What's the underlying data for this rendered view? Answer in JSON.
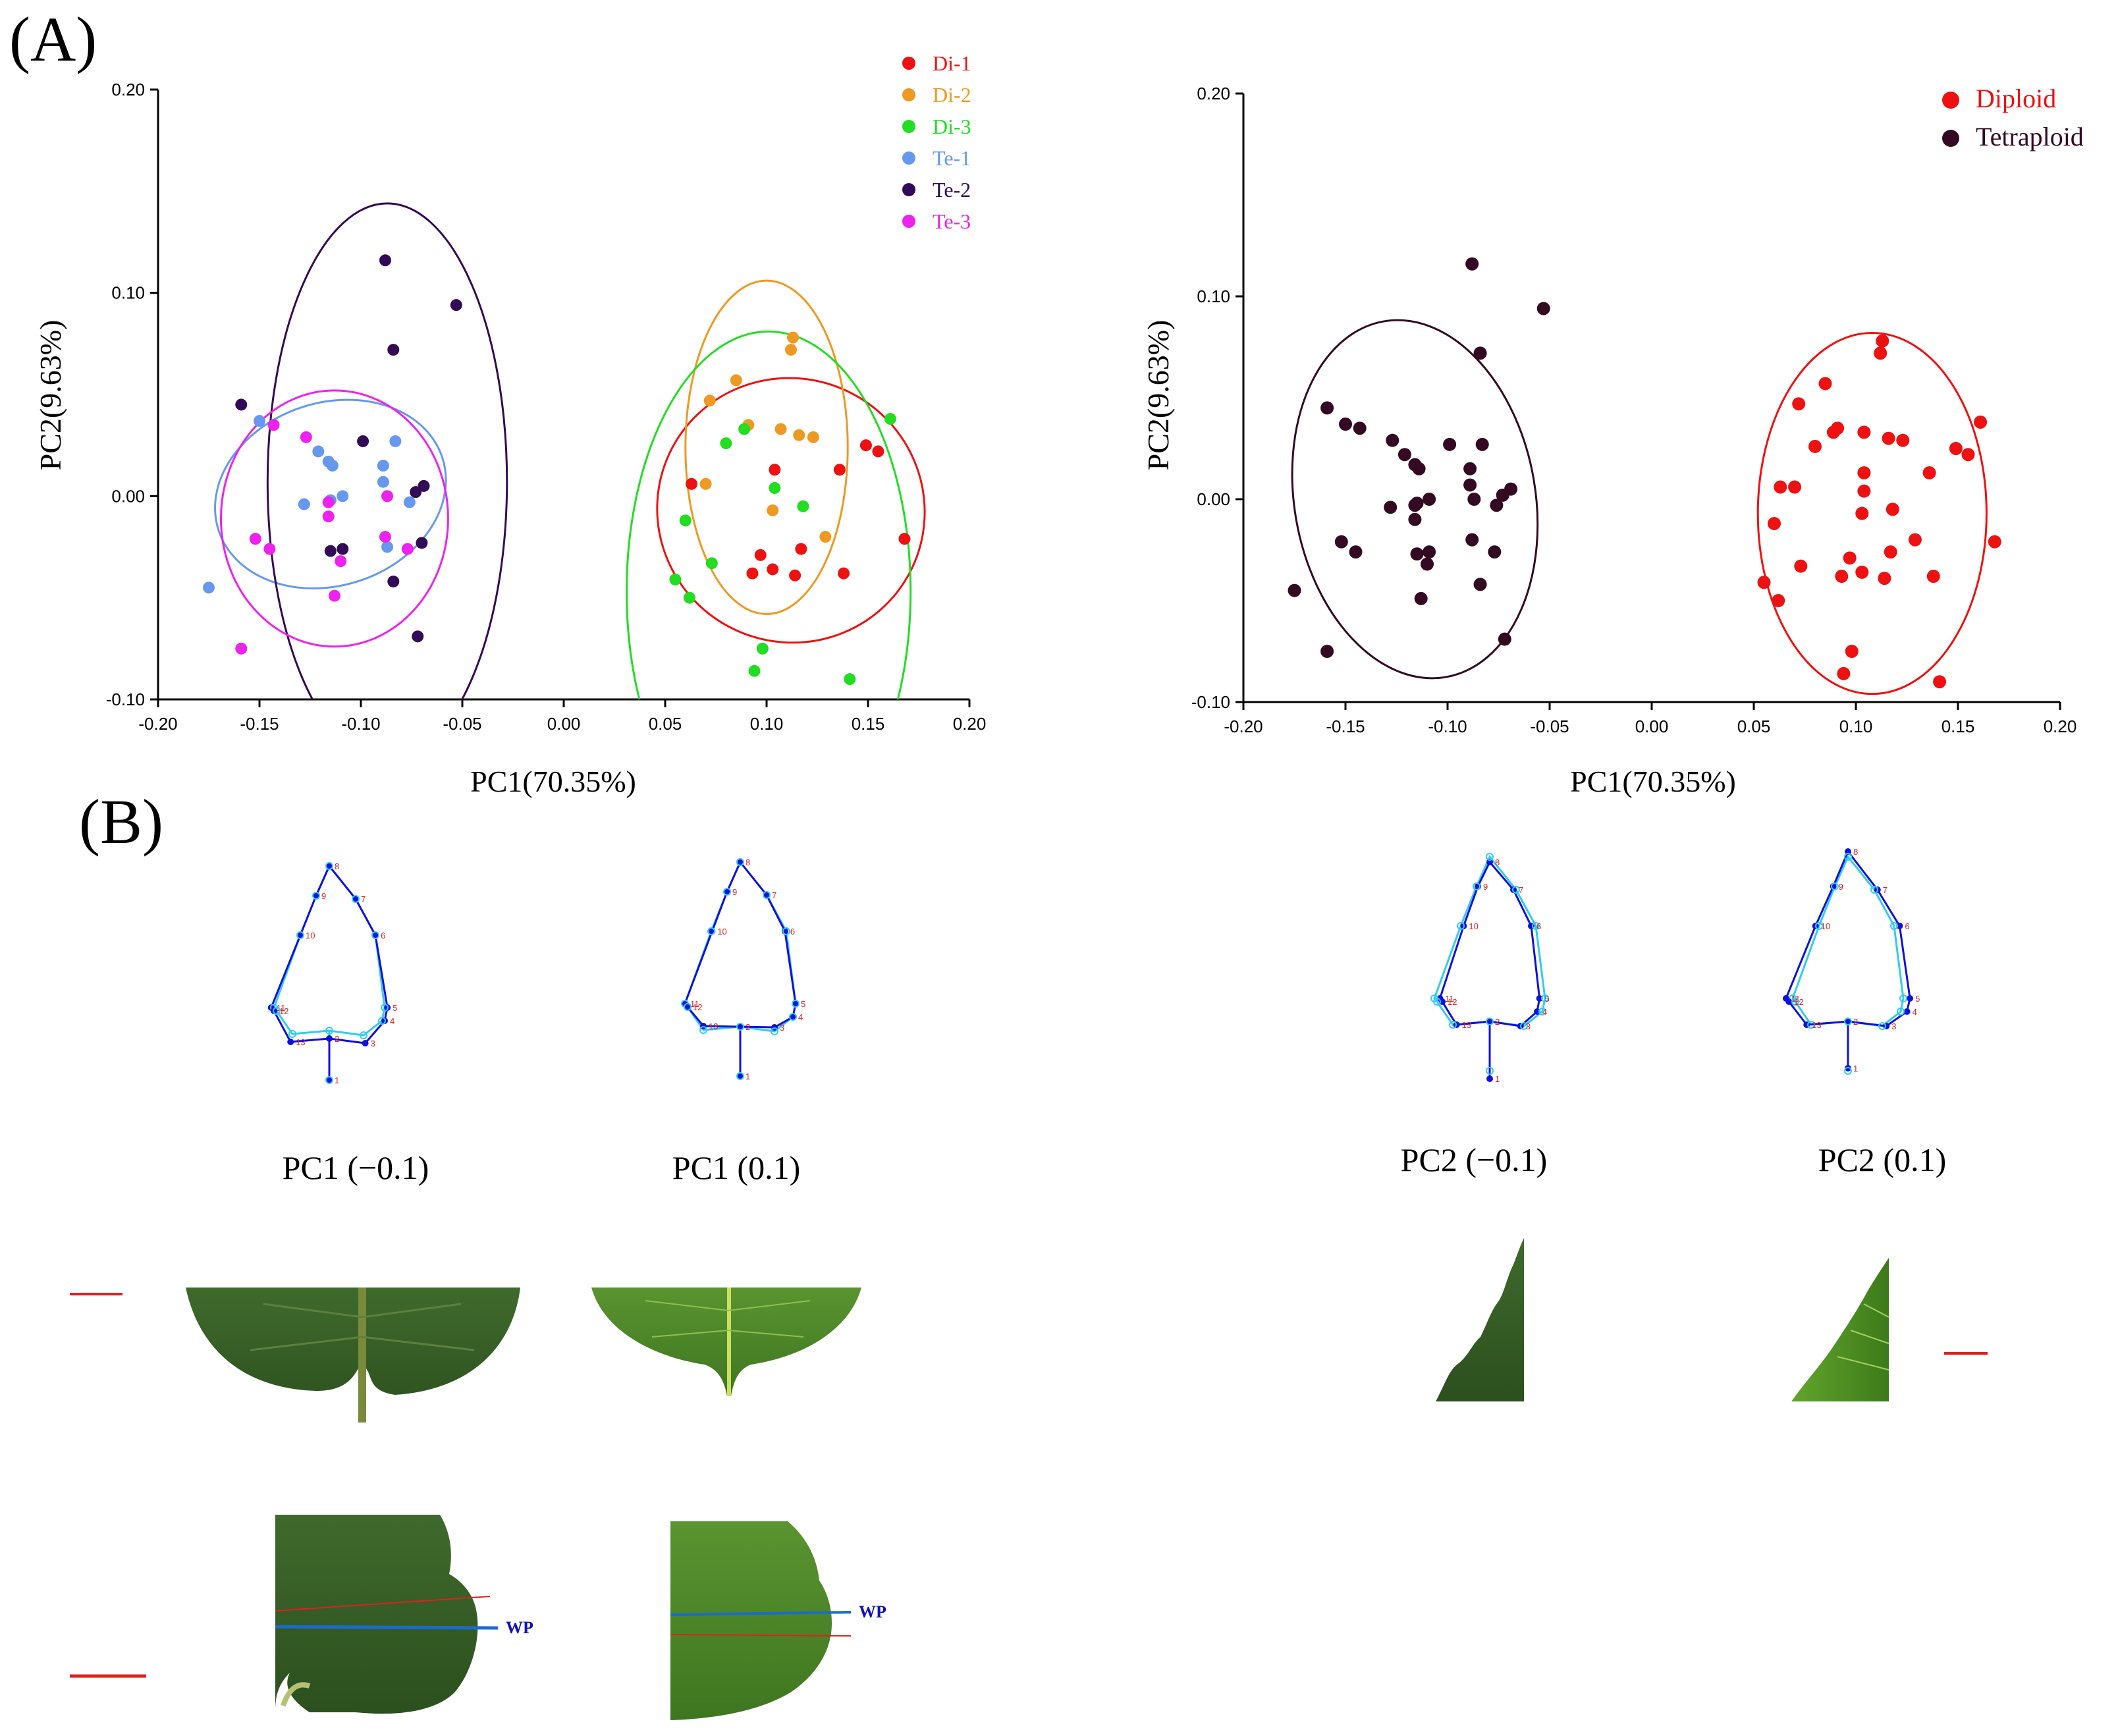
{
  "panel_labels": {
    "a": "(A)",
    "b": "(B)"
  },
  "chart_data": [
    {
      "type": "scatter",
      "title": "",
      "xlabel": "PC1(70.35%)",
      "ylabel": "PC2(9.63%)",
      "xlim": [
        -0.2,
        0.2
      ],
      "ylim": [
        -0.1,
        0.2
      ],
      "xticks": [
        "-0.20",
        "-0.15",
        "-0.10",
        "-0.05",
        "0.00",
        "0.05",
        "0.10",
        "0.15",
        "0.20"
      ],
      "yticks": [
        "-0.10",
        "0.00",
        "0.10",
        "0.20"
      ],
      "legend_position": "top-right",
      "series": [
        {
          "name": "Di-1",
          "color": "#ee1111",
          "points": [
            [
              0.063,
              0.006
            ],
            [
              0.104,
              0.013
            ],
            [
              0.136,
              0.013
            ],
            [
              0.149,
              0.025
            ],
            [
              0.155,
              0.022
            ],
            [
              0.168,
              -0.021
            ],
            [
              0.093,
              -0.038
            ],
            [
              0.103,
              -0.036
            ],
            [
              0.114,
              -0.039
            ],
            [
              0.138,
              -0.038
            ],
            [
              0.097,
              -0.029
            ],
            [
              0.117,
              -0.026
            ]
          ],
          "ellipse": {
            "cx": 0.112,
            "cy": -0.007,
            "rx": 0.065,
            "ry": 0.066,
            "angle": -65
          }
        },
        {
          "name": "Di-2",
          "color": "#ee9922",
          "points": [
            [
              0.113,
              0.078
            ],
            [
              0.112,
              0.072
            ],
            [
              0.085,
              0.057
            ],
            [
              0.072,
              0.047
            ],
            [
              0.091,
              0.035
            ],
            [
              0.107,
              0.033
            ],
            [
              0.116,
              0.03
            ],
            [
              0.123,
              0.029
            ],
            [
              0.07,
              0.006
            ],
            [
              0.103,
              -0.007
            ],
            [
              0.129,
              -0.02
            ]
          ],
          "ellipse": {
            "cx": 0.1,
            "cy": 0.024,
            "rx": 0.04,
            "ry": 0.082,
            "angle": 0
          }
        },
        {
          "name": "Di-3",
          "color": "#22dd22",
          "points": [
            [
              0.161,
              0.038
            ],
            [
              0.089,
              0.033
            ],
            [
              0.08,
              0.026
            ],
            [
              0.104,
              0.004
            ],
            [
              0.118,
              -0.005
            ],
            [
              0.06,
              -0.012
            ],
            [
              0.073,
              -0.033
            ],
            [
              0.055,
              -0.041
            ],
            [
              0.062,
              -0.05
            ],
            [
              0.098,
              -0.075
            ],
            [
              0.094,
              -0.086
            ],
            [
              0.141,
              -0.09
            ]
          ],
          "ellipse": {
            "cx": 0.101,
            "cy": -0.047,
            "rx": 0.07,
            "ry": 0.128,
            "angle": 0
          }
        },
        {
          "name": "Te-1",
          "color": "#6699ee",
          "points": [
            [
              -0.15,
              0.037
            ],
            [
              -0.121,
              0.022
            ],
            [
              -0.116,
              0.017
            ],
            [
              -0.114,
              0.015
            ],
            [
              -0.089,
              0.015
            ],
            [
              -0.089,
              0.007
            ],
            [
              -0.083,
              0.027
            ],
            [
              -0.128,
              -0.004
            ],
            [
              -0.115,
              -0.002
            ],
            [
              -0.109,
              0.0
            ],
            [
              -0.076,
              -0.003
            ],
            [
              -0.087,
              -0.025
            ],
            [
              -0.175,
              -0.045
            ]
          ],
          "ellipse": {
            "cx": -0.115,
            "cy": 0.001,
            "rx": 0.058,
            "ry": 0.045,
            "angle": -18
          }
        },
        {
          "name": "Te-2",
          "color": "#330a55",
          "points": [
            [
              -0.088,
              0.116
            ],
            [
              -0.053,
              0.094
            ],
            [
              -0.084,
              0.072
            ],
            [
              -0.159,
              0.045
            ],
            [
              -0.099,
              0.027
            ],
            [
              -0.069,
              0.005
            ],
            [
              -0.073,
              0.002
            ],
            [
              -0.109,
              -0.026
            ],
            [
              -0.115,
              -0.027
            ],
            [
              -0.07,
              -0.023
            ],
            [
              -0.084,
              -0.042
            ],
            [
              -0.072,
              -0.069
            ]
          ],
          "ellipse": {
            "cx": -0.087,
            "cy": 0.007,
            "rx": 0.059,
            "ry": 0.137,
            "angle": 0
          }
        },
        {
          "name": "Te-3",
          "color": "#ee22ee",
          "points": [
            [
              -0.143,
              0.035
            ],
            [
              -0.127,
              0.029
            ],
            [
              -0.116,
              -0.003
            ],
            [
              -0.116,
              -0.01
            ],
            [
              -0.087,
              0.0
            ],
            [
              -0.088,
              -0.02
            ],
            [
              -0.152,
              -0.021
            ],
            [
              -0.145,
              -0.026
            ],
            [
              -0.11,
              -0.032
            ],
            [
              -0.077,
              -0.026
            ],
            [
              -0.113,
              -0.049
            ],
            [
              -0.159,
              -0.075
            ]
          ],
          "ellipse": {
            "cx": -0.113,
            "cy": -0.011,
            "rx": 0.056,
            "ry": 0.063,
            "angle": 0
          }
        }
      ]
    },
    {
      "type": "scatter",
      "title": "",
      "xlabel": "PC1(70.35%)",
      "ylabel": "PC2(9.63%)",
      "xlim": [
        -0.2,
        0.2
      ],
      "ylim": [
        -0.1,
        0.2
      ],
      "xticks": [
        "-0.20",
        "-0.15",
        "-0.10",
        "-0.05",
        "0.00",
        "0.05",
        "0.10",
        "0.15",
        "0.20"
      ],
      "yticks": [
        "-0.10",
        "0.00",
        "0.10",
        "0.20"
      ],
      "legend_position": "top-right",
      "series": [
        {
          "name": "Diploid",
          "color": "#ee1111",
          "points": [
            [
              0.113,
              0.078
            ],
            [
              0.112,
              0.072
            ],
            [
              0.085,
              0.057
            ],
            [
              0.072,
              0.047
            ],
            [
              0.161,
              0.038
            ],
            [
              0.089,
              0.033
            ],
            [
              0.091,
              0.035
            ],
            [
              0.08,
              0.026
            ],
            [
              0.104,
              0.033
            ],
            [
              0.116,
              0.03
            ],
            [
              0.123,
              0.029
            ],
            [
              0.149,
              0.025
            ],
            [
              0.155,
              0.022
            ],
            [
              0.136,
              0.013
            ],
            [
              0.104,
              0.013
            ],
            [
              0.063,
              0.006
            ],
            [
              0.07,
              0.006
            ],
            [
              0.104,
              0.004
            ],
            [
              0.103,
              -0.007
            ],
            [
              0.118,
              -0.005
            ],
            [
              0.06,
              -0.012
            ],
            [
              0.168,
              -0.021
            ],
            [
              0.129,
              -0.02
            ],
            [
              0.117,
              -0.026
            ],
            [
              0.073,
              -0.033
            ],
            [
              0.097,
              -0.029
            ],
            [
              0.093,
              -0.038
            ],
            [
              0.103,
              -0.036
            ],
            [
              0.114,
              -0.039
            ],
            [
              0.138,
              -0.038
            ],
            [
              0.055,
              -0.041
            ],
            [
              0.062,
              -0.05
            ],
            [
              0.098,
              -0.075
            ],
            [
              0.094,
              -0.086
            ],
            [
              0.141,
              -0.09
            ]
          ],
          "ellipse": {
            "cx": 0.108,
            "cy": -0.007,
            "rx": 0.056,
            "ry": 0.089,
            "angle": 0
          }
        },
        {
          "name": "Tetraploid",
          "color": "#330a22",
          "points": [
            [
              -0.088,
              0.116
            ],
            [
              -0.053,
              0.094
            ],
            [
              -0.084,
              0.072
            ],
            [
              -0.159,
              0.045
            ],
            [
              -0.15,
              0.037
            ],
            [
              -0.143,
              0.035
            ],
            [
              -0.127,
              0.029
            ],
            [
              -0.099,
              0.027
            ],
            [
              -0.083,
              0.027
            ],
            [
              -0.121,
              0.022
            ],
            [
              -0.116,
              0.017
            ],
            [
              -0.089,
              0.015
            ],
            [
              -0.114,
              0.015
            ],
            [
              -0.089,
              0.007
            ],
            [
              -0.069,
              0.005
            ],
            [
              -0.073,
              0.002
            ],
            [
              -0.087,
              0.0
            ],
            [
              -0.109,
              0.0
            ],
            [
              -0.115,
              -0.002
            ],
            [
              -0.128,
              -0.004
            ],
            [
              -0.116,
              -0.003
            ],
            [
              -0.076,
              -0.003
            ],
            [
              -0.116,
              -0.01
            ],
            [
              -0.088,
              -0.02
            ],
            [
              -0.152,
              -0.021
            ],
            [
              -0.145,
              -0.026
            ],
            [
              -0.077,
              -0.026
            ],
            [
              -0.109,
              -0.026
            ],
            [
              -0.115,
              -0.027
            ],
            [
              -0.11,
              -0.032
            ],
            [
              -0.084,
              -0.042
            ],
            [
              -0.113,
              -0.049
            ],
            [
              -0.175,
              -0.045
            ],
            [
              -0.072,
              -0.069
            ],
            [
              -0.159,
              -0.075
            ]
          ],
          "ellipse": {
            "cx": -0.116,
            "cy": 0.0,
            "rx": 0.059,
            "ry": 0.089,
            "angle": -10
          }
        }
      ]
    }
  ],
  "shapes": {
    "captions": [
      "PC1 (−0.1)",
      "PC1 (0.1)",
      "PC2 (−0.1)",
      "PC2 (0.1)"
    ],
    "landmark_numbers": [
      "1",
      "2",
      "3",
      "4",
      "5",
      "6",
      "7",
      "8",
      "9",
      "10",
      "11",
      "12",
      "13"
    ],
    "wp_label": "WP",
    "colors": {
      "mean": "#33ccee",
      "deformed": "#1010dd",
      "numbers": "#e02020",
      "scale_bar": "#e02020"
    }
  }
}
